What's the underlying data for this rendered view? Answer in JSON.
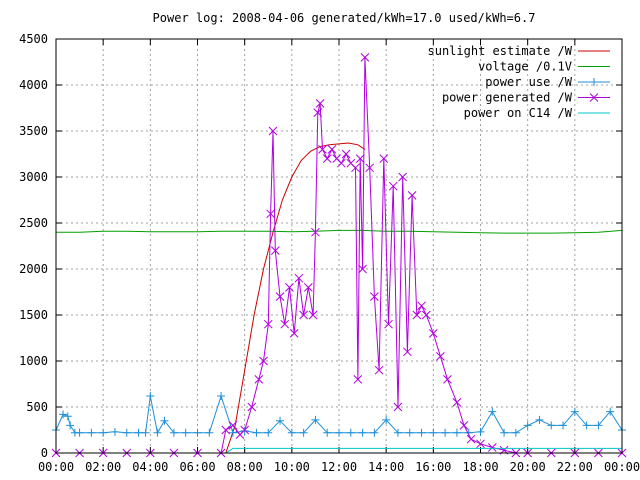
{
  "chart_data": {
    "type": "line",
    "title": "Power log: 2008-04-06 generated/kWh=17.0 used/kWh=6.7",
    "xlabel": "",
    "ylabel": "",
    "xlim": [
      0,
      24
    ],
    "ylim": [
      0,
      4500
    ],
    "grid": true,
    "legend_position": "top-right",
    "x_ticks": [
      "00:00",
      "02:00",
      "04:00",
      "06:00",
      "08:00",
      "10:00",
      "12:00",
      "14:00",
      "16:00",
      "18:00",
      "20:00",
      "22:00",
      "00:00"
    ],
    "y_ticks": [
      0,
      500,
      1000,
      1500,
      2000,
      2500,
      3000,
      3500,
      4000,
      4500
    ],
    "series": [
      {
        "name": "sunlight estimate /W",
        "color": "#cc0000",
        "marker": "none",
        "x": [
          7.2,
          7.6,
          8.0,
          8.4,
          8.8,
          9.2,
          9.6,
          10.0,
          10.4,
          10.8,
          11.2,
          11.6,
          12.0,
          12.4,
          12.8,
          13.1
        ],
        "y": [
          0,
          300,
          900,
          1500,
          2000,
          2400,
          2750,
          3000,
          3180,
          3280,
          3330,
          3350,
          3360,
          3370,
          3350,
          3300
        ]
      },
      {
        "name": "voltage /0.1V",
        "color": "#00a000",
        "marker": "none",
        "x": [
          0,
          1,
          2,
          3,
          4,
          5,
          6,
          7,
          8,
          9,
          10,
          11,
          12,
          13,
          14,
          15,
          16,
          17,
          18,
          19,
          20,
          21,
          22,
          23,
          24
        ],
        "y": [
          2400,
          2400,
          2410,
          2410,
          2405,
          2405,
          2405,
          2410,
          2410,
          2410,
          2405,
          2410,
          2420,
          2420,
          2410,
          2410,
          2405,
          2400,
          2395,
          2390,
          2390,
          2390,
          2395,
          2400,
          2420
        ]
      },
      {
        "name": "power use /W",
        "color": "#1e8fd6",
        "marker": "plus",
        "x": [
          0.0,
          0.3,
          0.5,
          0.6,
          0.8,
          1.0,
          1.5,
          2.0,
          2.5,
          3.0,
          3.5,
          3.8,
          4.0,
          4.3,
          4.6,
          5.0,
          5.5,
          6.0,
          6.5,
          7.0,
          7.5,
          8.0,
          8.5,
          9.0,
          9.5,
          10.0,
          10.5,
          11.0,
          11.5,
          12.0,
          12.5,
          13.0,
          13.5,
          14.0,
          14.5,
          15.0,
          15.5,
          16.0,
          16.5,
          17.0,
          17.5,
          18.0,
          18.5,
          19.0,
          19.5,
          20.0,
          20.5,
          21.0,
          21.5,
          22.0,
          22.5,
          23.0,
          23.5,
          24.0
        ],
        "y": [
          250,
          420,
          400,
          300,
          220,
          220,
          220,
          220,
          230,
          220,
          220,
          220,
          620,
          220,
          350,
          220,
          220,
          220,
          220,
          620,
          220,
          240,
          220,
          220,
          350,
          220,
          220,
          360,
          220,
          220,
          220,
          220,
          220,
          360,
          220,
          220,
          220,
          220,
          220,
          220,
          220,
          230,
          450,
          220,
          220,
          300,
          360,
          300,
          300,
          450,
          300,
          300,
          450,
          250
        ]
      },
      {
        "name": "power generated /W",
        "color": "#b000e0",
        "marker": "x",
        "x": [
          0.0,
          1.0,
          2.0,
          3.0,
          4.0,
          5.0,
          6.0,
          7.0,
          7.2,
          7.5,
          7.8,
          8.0,
          8.3,
          8.6,
          8.8,
          9.0,
          9.1,
          9.2,
          9.3,
          9.5,
          9.7,
          9.9,
          10.1,
          10.3,
          10.5,
          10.7,
          10.9,
          11.0,
          11.1,
          11.2,
          11.3,
          11.5,
          11.7,
          11.9,
          12.1,
          12.3,
          12.5,
          12.7,
          12.8,
          12.9,
          13.0,
          13.1,
          13.3,
          13.5,
          13.7,
          13.9,
          14.1,
          14.3,
          14.5,
          14.7,
          14.9,
          15.1,
          15.3,
          15.5,
          15.7,
          16.0,
          16.3,
          16.6,
          17.0,
          17.3,
          17.6,
          18.0,
          18.5,
          19.0,
          19.5,
          20.0,
          21.0,
          22.0,
          23.0,
          24.0
        ],
        "y": [
          0,
          0,
          0,
          0,
          0,
          0,
          0,
          0,
          250,
          300,
          200,
          250,
          500,
          800,
          1000,
          1400,
          2600,
          3500,
          2200,
          1700,
          1400,
          1800,
          1300,
          1900,
          1500,
          1800,
          1500,
          2400,
          3700,
          3800,
          3300,
          3200,
          3300,
          3200,
          3150,
          3250,
          3150,
          3100,
          800,
          3200,
          2000,
          4300,
          3100,
          1700,
          900,
          3200,
          1400,
          2900,
          500,
          3000,
          1100,
          2800,
          1500,
          1600,
          1500,
          1300,
          1050,
          800,
          550,
          300,
          150,
          100,
          60,
          30,
          0,
          0,
          0,
          0,
          0,
          0
        ]
      },
      {
        "name": "power on C14 /W",
        "color": "#00c8c8",
        "marker": "none",
        "x": [
          0,
          4,
          7.2,
          7.5,
          12,
          16,
          18.5,
          24
        ],
        "y": [
          0,
          0,
          0,
          50,
          50,
          50,
          50,
          50
        ]
      }
    ]
  }
}
